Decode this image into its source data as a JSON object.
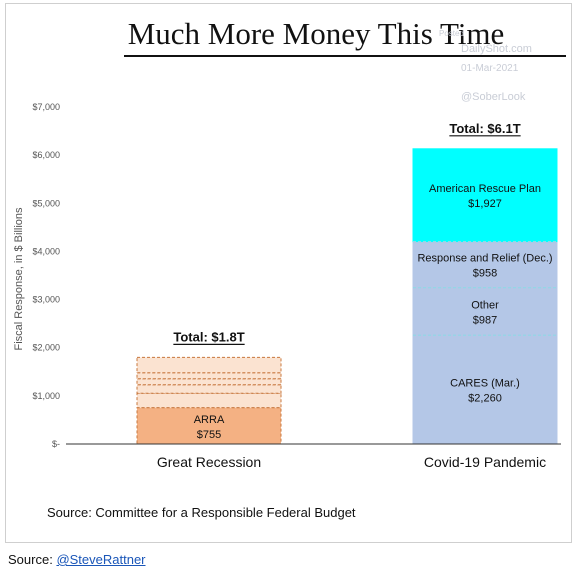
{
  "footer": {
    "label": "Source:",
    "link": "@SteveRattner"
  },
  "watermark": {
    "posted": "Posted",
    "site": "DailyShot.com",
    "date": "01-Mar-2021",
    "handle": "@SoberLook"
  },
  "colors": {
    "recession_other": "#fbe3d1",
    "arra": "#f4b183",
    "arra_border": "#c8783f",
    "arp": "#00ffff",
    "covid_other": "#b4c7e7",
    "covid_divider": "#8fd8e6",
    "axis": "#333333"
  },
  "chart_data": {
    "type": "bar",
    "stacked": true,
    "title": "Much More Money This Time",
    "ylabel": "Fiscal Response, in $ Billions",
    "ylim": [
      0,
      7000
    ],
    "yticks": [
      0,
      1000,
      2000,
      3000,
      4000,
      5000,
      6000,
      7000
    ],
    "ytick_labels": [
      "$-",
      "$1,000",
      "$2,000",
      "$3,000",
      "$4,000",
      "$5,000",
      "$6,000",
      "$7,000"
    ],
    "grid": false,
    "source_note": "Source: Committee for a Responsible Federal Budget",
    "categories": [
      "Great Recession",
      "Covid-19 Pandemic"
    ],
    "totals": [
      "Total: $1.8T",
      "Total: $6.1T"
    ],
    "stacks": [
      {
        "category": "Great Recession",
        "segments": [
          {
            "name": "ARRA",
            "value": 755,
            "value_label": "$755",
            "style": "arra"
          },
          {
            "name": "",
            "value": 300,
            "value_label": "",
            "style": "recession_other"
          },
          {
            "name": "",
            "value": 175,
            "value_label": "",
            "style": "recession_other"
          },
          {
            "name": "",
            "value": 125,
            "value_label": "",
            "style": "recession_other"
          },
          {
            "name": "",
            "value": 125,
            "value_label": "",
            "style": "recession_other"
          },
          {
            "name": "",
            "value": 320,
            "value_label": "",
            "style": "recession_other"
          }
        ]
      },
      {
        "category": "Covid-19 Pandemic",
        "segments": [
          {
            "name": "CARES (Mar.)",
            "value": 2260,
            "value_label": "$2,260",
            "style": "covid_other"
          },
          {
            "name": "Other",
            "value": 987,
            "value_label": "$987",
            "style": "covid_other"
          },
          {
            "name": "Response and Relief (Dec.)",
            "value": 958,
            "value_label": "$958",
            "style": "covid_other"
          },
          {
            "name": "American Rescue Plan",
            "value": 1927,
            "value_label": "$1,927",
            "style": "arp"
          }
        ]
      }
    ]
  }
}
